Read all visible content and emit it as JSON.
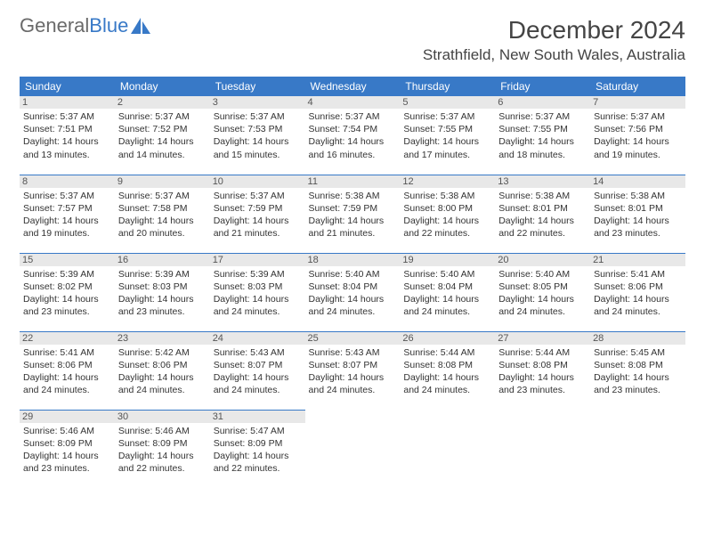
{
  "logo": {
    "text1": "General",
    "text2": "Blue"
  },
  "title": "December 2024",
  "location": "Strathfield, New South Wales, Australia",
  "colors": {
    "header_bg": "#3879c7",
    "header_text": "#ffffff",
    "daynum_bg": "#e8e8e8",
    "rule": "#3879c7",
    "logo_grey": "#6a6a6a",
    "logo_blue": "#3879c7"
  },
  "weekdays": [
    "Sunday",
    "Monday",
    "Tuesday",
    "Wednesday",
    "Thursday",
    "Friday",
    "Saturday"
  ],
  "days": [
    {
      "n": 1,
      "sunrise": "5:37 AM",
      "sunset": "7:51 PM",
      "dl": "14 hours and 13 minutes."
    },
    {
      "n": 2,
      "sunrise": "5:37 AM",
      "sunset": "7:52 PM",
      "dl": "14 hours and 14 minutes."
    },
    {
      "n": 3,
      "sunrise": "5:37 AM",
      "sunset": "7:53 PM",
      "dl": "14 hours and 15 minutes."
    },
    {
      "n": 4,
      "sunrise": "5:37 AM",
      "sunset": "7:54 PM",
      "dl": "14 hours and 16 minutes."
    },
    {
      "n": 5,
      "sunrise": "5:37 AM",
      "sunset": "7:55 PM",
      "dl": "14 hours and 17 minutes."
    },
    {
      "n": 6,
      "sunrise": "5:37 AM",
      "sunset": "7:55 PM",
      "dl": "14 hours and 18 minutes."
    },
    {
      "n": 7,
      "sunrise": "5:37 AM",
      "sunset": "7:56 PM",
      "dl": "14 hours and 19 minutes."
    },
    {
      "n": 8,
      "sunrise": "5:37 AM",
      "sunset": "7:57 PM",
      "dl": "14 hours and 19 minutes."
    },
    {
      "n": 9,
      "sunrise": "5:37 AM",
      "sunset": "7:58 PM",
      "dl": "14 hours and 20 minutes."
    },
    {
      "n": 10,
      "sunrise": "5:37 AM",
      "sunset": "7:59 PM",
      "dl": "14 hours and 21 minutes."
    },
    {
      "n": 11,
      "sunrise": "5:38 AM",
      "sunset": "7:59 PM",
      "dl": "14 hours and 21 minutes."
    },
    {
      "n": 12,
      "sunrise": "5:38 AM",
      "sunset": "8:00 PM",
      "dl": "14 hours and 22 minutes."
    },
    {
      "n": 13,
      "sunrise": "5:38 AM",
      "sunset": "8:01 PM",
      "dl": "14 hours and 22 minutes."
    },
    {
      "n": 14,
      "sunrise": "5:38 AM",
      "sunset": "8:01 PM",
      "dl": "14 hours and 23 minutes."
    },
    {
      "n": 15,
      "sunrise": "5:39 AM",
      "sunset": "8:02 PM",
      "dl": "14 hours and 23 minutes."
    },
    {
      "n": 16,
      "sunrise": "5:39 AM",
      "sunset": "8:03 PM",
      "dl": "14 hours and 23 minutes."
    },
    {
      "n": 17,
      "sunrise": "5:39 AM",
      "sunset": "8:03 PM",
      "dl": "14 hours and 24 minutes."
    },
    {
      "n": 18,
      "sunrise": "5:40 AM",
      "sunset": "8:04 PM",
      "dl": "14 hours and 24 minutes."
    },
    {
      "n": 19,
      "sunrise": "5:40 AM",
      "sunset": "8:04 PM",
      "dl": "14 hours and 24 minutes."
    },
    {
      "n": 20,
      "sunrise": "5:40 AM",
      "sunset": "8:05 PM",
      "dl": "14 hours and 24 minutes."
    },
    {
      "n": 21,
      "sunrise": "5:41 AM",
      "sunset": "8:06 PM",
      "dl": "14 hours and 24 minutes."
    },
    {
      "n": 22,
      "sunrise": "5:41 AM",
      "sunset": "8:06 PM",
      "dl": "14 hours and 24 minutes."
    },
    {
      "n": 23,
      "sunrise": "5:42 AM",
      "sunset": "8:06 PM",
      "dl": "14 hours and 24 minutes."
    },
    {
      "n": 24,
      "sunrise": "5:43 AM",
      "sunset": "8:07 PM",
      "dl": "14 hours and 24 minutes."
    },
    {
      "n": 25,
      "sunrise": "5:43 AM",
      "sunset": "8:07 PM",
      "dl": "14 hours and 24 minutes."
    },
    {
      "n": 26,
      "sunrise": "5:44 AM",
      "sunset": "8:08 PM",
      "dl": "14 hours and 24 minutes."
    },
    {
      "n": 27,
      "sunrise": "5:44 AM",
      "sunset": "8:08 PM",
      "dl": "14 hours and 23 minutes."
    },
    {
      "n": 28,
      "sunrise": "5:45 AM",
      "sunset": "8:08 PM",
      "dl": "14 hours and 23 minutes."
    },
    {
      "n": 29,
      "sunrise": "5:46 AM",
      "sunset": "8:09 PM",
      "dl": "14 hours and 23 minutes."
    },
    {
      "n": 30,
      "sunrise": "5:46 AM",
      "sunset": "8:09 PM",
      "dl": "14 hours and 22 minutes."
    },
    {
      "n": 31,
      "sunrise": "5:47 AM",
      "sunset": "8:09 PM",
      "dl": "14 hours and 22 minutes."
    }
  ],
  "labels": {
    "sunrise": "Sunrise:",
    "sunset": "Sunset:",
    "daylight": "Daylight:"
  }
}
